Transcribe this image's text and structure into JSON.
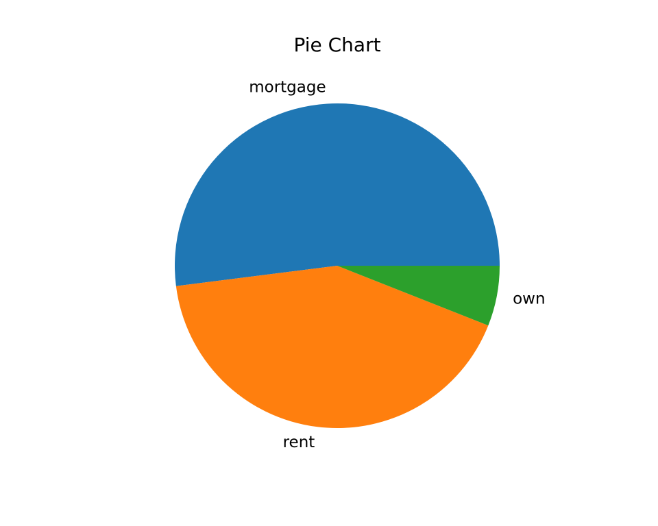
{
  "chart_data": {
    "type": "pie",
    "title": "Pie Chart",
    "start_angle_deg": 0,
    "direction": "counterclockwise",
    "slices": [
      {
        "label": "mortgage",
        "value": 52.0,
        "color": "#1f77b4"
      },
      {
        "label": "rent",
        "value": 42.0,
        "color": "#ff7f0e"
      },
      {
        "label": "own",
        "value": 6.0,
        "color": "#2ca02c"
      }
    ]
  }
}
